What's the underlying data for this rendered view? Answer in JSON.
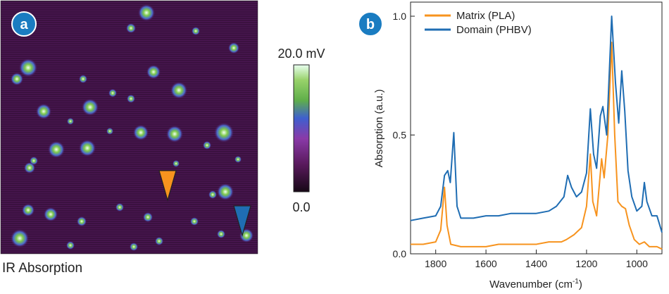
{
  "panel_a": {
    "badge": "a",
    "caption": "IR Absorption",
    "colorbar": {
      "max_label": "20.0 mV",
      "min_label": "0.0"
    },
    "markers": [
      {
        "name": "orange",
        "color": "#f7931e"
      },
      {
        "name": "blue",
        "color": "#1f6db3"
      }
    ]
  },
  "panel_b": {
    "badge": "b",
    "badge_color": "#1a7cc1"
  },
  "chart_data": {
    "type": "line",
    "title": "",
    "xlabel": "Wavenumber (cm",
    "xlabel_sup": "-1",
    "xlabel_tail": ")",
    "ylabel": "Absorption (a.u.)",
    "xlim": [
      1900,
      900
    ],
    "ylim": [
      0,
      1.0
    ],
    "x_reversed": true,
    "x_ticks": [
      1800,
      1600,
      1400,
      1200,
      1000
    ],
    "y_ticks": [
      0.0,
      0.5,
      1.0
    ],
    "y_tick_labels": [
      "0.0",
      "0.5",
      "1.0"
    ],
    "legend_position": "top-left",
    "grid": false,
    "series": [
      {
        "name": "Matrix (PLA)",
        "color": "#f7931e",
        "points": [
          [
            1900,
            0.04
          ],
          [
            1850,
            0.04
          ],
          [
            1800,
            0.05
          ],
          [
            1780,
            0.1
          ],
          [
            1765,
            0.28
          ],
          [
            1755,
            0.12
          ],
          [
            1740,
            0.04
          ],
          [
            1700,
            0.03
          ],
          [
            1650,
            0.03
          ],
          [
            1600,
            0.03
          ],
          [
            1550,
            0.04
          ],
          [
            1500,
            0.04
          ],
          [
            1450,
            0.04
          ],
          [
            1400,
            0.04
          ],
          [
            1350,
            0.05
          ],
          [
            1300,
            0.05
          ],
          [
            1280,
            0.06
          ],
          [
            1250,
            0.08
          ],
          [
            1220,
            0.11
          ],
          [
            1200,
            0.2
          ],
          [
            1185,
            0.42
          ],
          [
            1175,
            0.22
          ],
          [
            1160,
            0.16
          ],
          [
            1140,
            0.4
          ],
          [
            1130,
            0.32
          ],
          [
            1115,
            0.5
          ],
          [
            1100,
            0.89
          ],
          [
            1088,
            0.5
          ],
          [
            1075,
            0.22
          ],
          [
            1060,
            0.2
          ],
          [
            1045,
            0.19
          ],
          [
            1030,
            0.12
          ],
          [
            1010,
            0.06
          ],
          [
            990,
            0.04
          ],
          [
            970,
            0.05
          ],
          [
            950,
            0.03
          ],
          [
            920,
            0.03
          ],
          [
            900,
            0.02
          ]
        ]
      },
      {
        "name": "Domain (PHBV)",
        "color": "#1f6db3",
        "points": [
          [
            1900,
            0.14
          ],
          [
            1850,
            0.15
          ],
          [
            1800,
            0.16
          ],
          [
            1780,
            0.2
          ],
          [
            1765,
            0.33
          ],
          [
            1752,
            0.35
          ],
          [
            1742,
            0.3
          ],
          [
            1728,
            0.51
          ],
          [
            1715,
            0.2
          ],
          [
            1700,
            0.15
          ],
          [
            1650,
            0.15
          ],
          [
            1600,
            0.16
          ],
          [
            1550,
            0.16
          ],
          [
            1500,
            0.17
          ],
          [
            1450,
            0.17
          ],
          [
            1400,
            0.17
          ],
          [
            1350,
            0.18
          ],
          [
            1320,
            0.2
          ],
          [
            1290,
            0.24
          ],
          [
            1275,
            0.33
          ],
          [
            1260,
            0.28
          ],
          [
            1240,
            0.24
          ],
          [
            1220,
            0.26
          ],
          [
            1200,
            0.34
          ],
          [
            1185,
            0.61
          ],
          [
            1172,
            0.42
          ],
          [
            1160,
            0.36
          ],
          [
            1145,
            0.58
          ],
          [
            1135,
            0.62
          ],
          [
            1120,
            0.5
          ],
          [
            1100,
            1.0
          ],
          [
            1085,
            0.72
          ],
          [
            1072,
            0.55
          ],
          [
            1060,
            0.77
          ],
          [
            1048,
            0.6
          ],
          [
            1035,
            0.35
          ],
          [
            1020,
            0.24
          ],
          [
            1000,
            0.18
          ],
          [
            980,
            0.2
          ],
          [
            970,
            0.3
          ],
          [
            960,
            0.22
          ],
          [
            940,
            0.16
          ],
          [
            920,
            0.16
          ],
          [
            900,
            0.09
          ]
        ]
      }
    ]
  }
}
